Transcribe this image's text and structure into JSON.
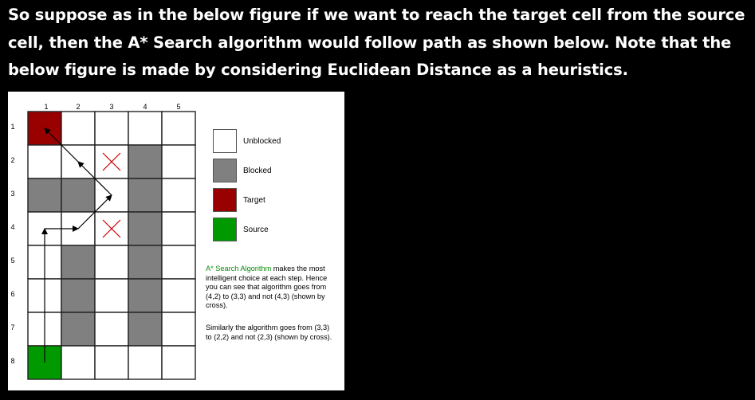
{
  "paragraph": "So suppose as in the below figure if we want to reach the target cell from the source cell, then the A* Search algorithm would follow path as shown below. Note that the below figure is made by considering Euclidean Distance as a heuristics.",
  "grid": {
    "col_labels": [
      "1",
      "2",
      "3",
      "4",
      "5"
    ],
    "row_labels": [
      "1",
      "2",
      "3",
      "4",
      "5",
      "6",
      "7",
      "8"
    ],
    "cells": [
      [
        "target",
        "unblocked",
        "unblocked",
        "unblocked",
        "unblocked"
      ],
      [
        "unblocked",
        "unblocked",
        "unblocked",
        "blocked",
        "unblocked"
      ],
      [
        "blocked",
        "blocked",
        "unblocked",
        "blocked",
        "unblocked"
      ],
      [
        "unblocked",
        "unblocked",
        "unblocked",
        "blocked",
        "unblocked"
      ],
      [
        "unblocked",
        "blocked",
        "unblocked",
        "blocked",
        "unblocked"
      ],
      [
        "unblocked",
        "blocked",
        "unblocked",
        "blocked",
        "unblocked"
      ],
      [
        "unblocked",
        "blocked",
        "unblocked",
        "blocked",
        "unblocked"
      ],
      [
        "source",
        "unblocked",
        "unblocked",
        "unblocked",
        "unblocked"
      ]
    ],
    "path": [
      [
        8,
        1
      ],
      [
        4,
        1
      ],
      [
        4,
        2
      ],
      [
        3,
        3
      ],
      [
        2,
        2
      ],
      [
        1,
        1
      ]
    ],
    "crossed_cells": [
      [
        2,
        3
      ],
      [
        4,
        3
      ]
    ]
  },
  "colors": {
    "target": "#990000",
    "blocked": "#808080",
    "unblocked": "#ffffff",
    "source": "#009900",
    "cross": "#cc0000",
    "highlight": "#0a8a0a"
  },
  "legend": {
    "unblocked": "Unblocked",
    "blocked": "Blocked",
    "target": "Target",
    "source": "Source"
  },
  "note1": {
    "highlight": "A* Search Algorithm",
    "rest": " makes the most intelligent choice at each step. Hence you can see that algorithm goes from (4,2) to (3,3) and not (4,3) (shown by cross)."
  },
  "note2": "Similarly the algorithm goes from (3,3) to (2,2) and not (2,3) (shown by cross)."
}
